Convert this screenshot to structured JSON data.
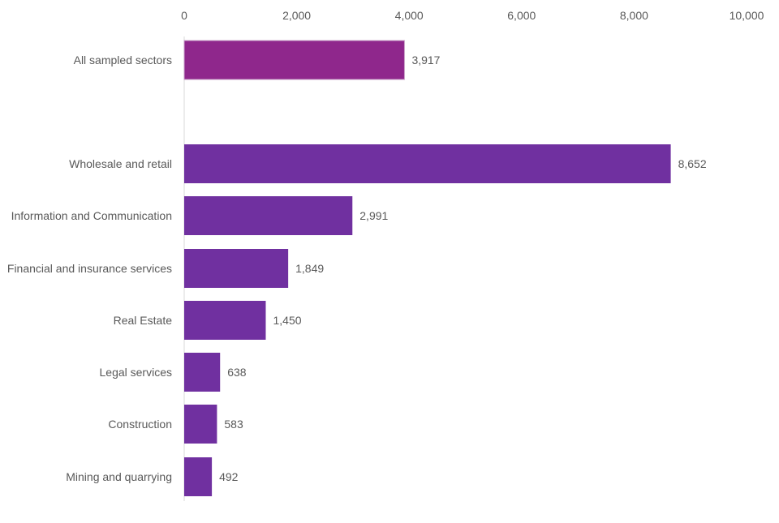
{
  "chart_data": {
    "type": "bar",
    "orientation": "horizontal",
    "title": "",
    "xlabel": "",
    "ylabel": "",
    "xlim": [
      0,
      10000
    ],
    "x_ticks": [
      "0",
      "2,000",
      "4,000",
      "6,000",
      "8,000",
      "10,000"
    ],
    "x_tick_values": [
      0,
      2000,
      4000,
      6000,
      8000,
      10000
    ],
    "x_axis_position": "top",
    "grid": false,
    "categories": [
      "All sampled sectors",
      "Wholesale and retail",
      "Information and Communication",
      "Financial and insurance services",
      "Real Estate",
      "Legal services",
      "Construction",
      "Mining and quarrying"
    ],
    "values": [
      3917,
      8652,
      2991,
      1849,
      1450,
      638,
      583,
      492
    ],
    "data_labels": [
      "3,917",
      "8,652",
      "2,991",
      "1,849",
      "1,450",
      "638",
      "583",
      "492"
    ],
    "colors": [
      "#8f278c",
      "#7030a0",
      "#7030a0",
      "#7030a0",
      "#7030a0",
      "#7030a0",
      "#7030a0",
      "#7030a0"
    ]
  }
}
